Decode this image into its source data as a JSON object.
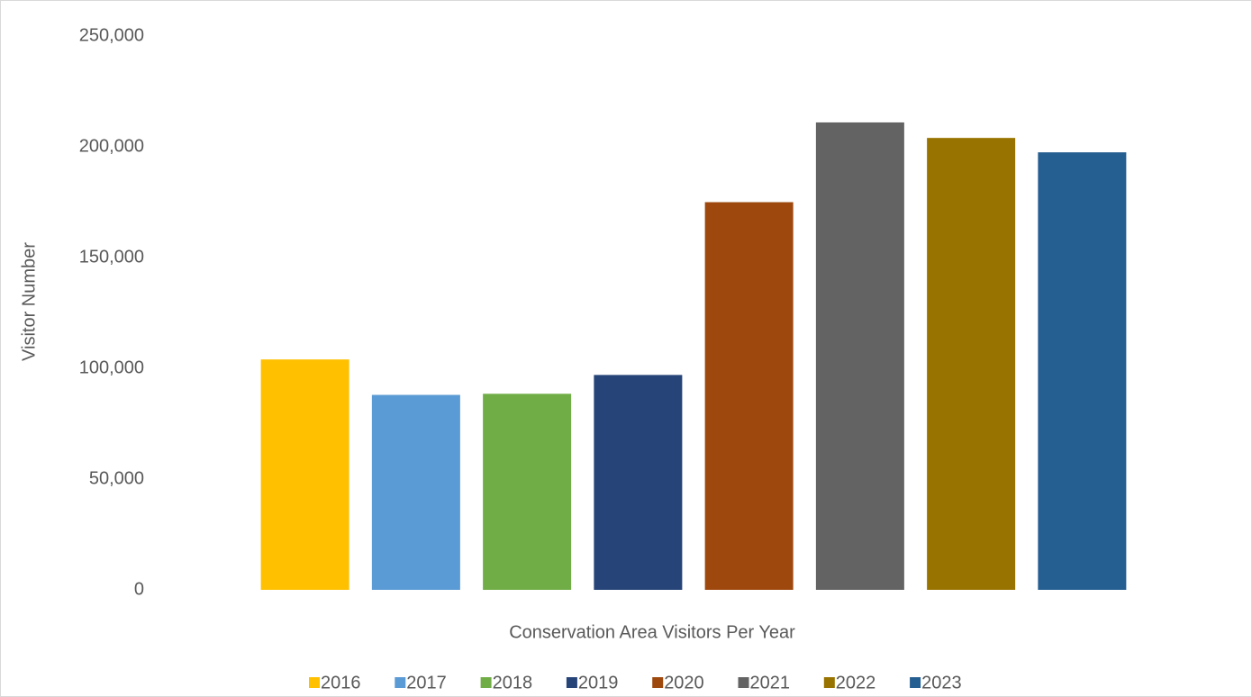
{
  "chart_data": {
    "type": "bar",
    "x_label": "Conservation Area Visitors Per Year",
    "y_label": "Visitor Number",
    "categories": [
      null
    ],
    "series": [
      {
        "name": "2016",
        "color": "#ffc000",
        "values": [
          104000
        ]
      },
      {
        "name": "2017",
        "color": "#5b9bd5",
        "values": [
          88000
        ]
      },
      {
        "name": "2018",
        "color": "#70ad47",
        "values": [
          88500
        ]
      },
      {
        "name": "2019",
        "color": "#264478",
        "values": [
          97000
        ]
      },
      {
        "name": "2020",
        "color": "#9e480e",
        "values": [
          175000
        ]
      },
      {
        "name": "2021",
        "color": "#636363",
        "values": [
          211000
        ]
      },
      {
        "name": "2022",
        "color": "#997300",
        "values": [
          204000
        ]
      },
      {
        "name": "2023",
        "color": "#255e91",
        "values": [
          197500
        ]
      }
    ],
    "ylim": [
      0,
      250000
    ],
    "yticks": [
      0,
      {
        "value": 50000,
        "label": "50,000"
      },
      {
        "value": 100000,
        "label": "100,000"
      },
      {
        "value": 150000,
        "label": "150,000"
      },
      {
        "value": 200000,
        "label": "200,000"
      },
      {
        "value": 250000,
        "label": "250,000"
      }
    ],
    "grid": false,
    "legend": "bottom"
  }
}
